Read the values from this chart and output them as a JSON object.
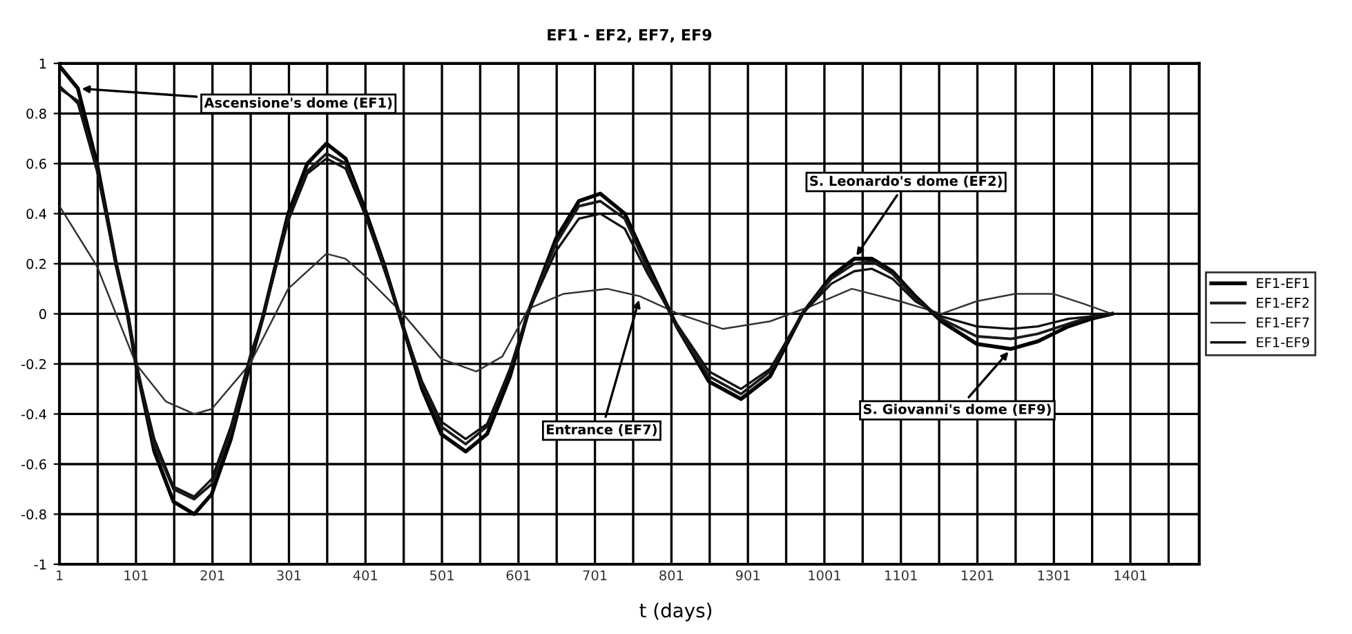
{
  "chart_data": {
    "type": "line",
    "title": "EF1 - EF2, EF7, EF9",
    "xlabel": "t (days)",
    "xlim": [
      1,
      1491
    ],
    "ylim": [
      -1,
      1
    ],
    "xticks": [
      1,
      {
        "value": 51,
        "label": null
      },
      101,
      {
        "value": 151,
        "label": null
      },
      201,
      {
        "value": 251,
        "label": null
      },
      301,
      {
        "value": 351,
        "label": null
      },
      401,
      {
        "value": 451,
        "label": null
      },
      501,
      {
        "value": 551,
        "label": null
      },
      601,
      {
        "value": 651,
        "label": null
      },
      701,
      {
        "value": 751,
        "label": null
      },
      801,
      {
        "value": 851,
        "label": null
      },
      901,
      {
        "value": 951,
        "label": null
      },
      1001,
      {
        "value": 1051,
        "label": null
      },
      1101,
      {
        "value": 1151,
        "label": null
      },
      1201,
      {
        "value": 1251,
        "label": null
      },
      1301,
      {
        "value": 1351,
        "label": null
      },
      1401,
      {
        "value": 1451,
        "label": null
      }
    ],
    "yticks": [
      -1,
      -0.8,
      -0.6,
      -0.4,
      -0.2,
      0,
      0.2,
      0.4,
      0.6,
      0.8,
      1
    ],
    "grid": true,
    "legend": "right",
    "marker": "none",
    "line_style": "solid",
    "series": [
      {
        "name": "EF1-EF1",
        "color": "#000000",
        "x": [
          1,
          25,
          50,
          75,
          90,
          101,
          125,
          150,
          177,
          200,
          225,
          250,
          268,
          300,
          325,
          350,
          375,
          400,
          425,
          445,
          475,
          500,
          532,
          560,
          590,
          613,
          650,
          680,
          708,
          740,
          770,
          808,
          850,
          892,
          930,
          972,
          1010,
          1040,
          1063,
          1090,
          1120,
          1154,
          1200,
          1245,
          1280,
          1320,
          1350,
          1377
        ],
        "values": [
          0.99,
          0.9,
          0.6,
          0.2,
          0,
          -0.2,
          -0.55,
          -0.75,
          -0.8,
          -0.72,
          -0.5,
          -0.2,
          0,
          0.4,
          0.6,
          0.68,
          0.62,
          0.42,
          0.2,
          0,
          -0.3,
          -0.48,
          -0.55,
          -0.48,
          -0.25,
          0,
          0.3,
          0.45,
          0.48,
          0.4,
          0.2,
          -0.05,
          -0.27,
          -0.34,
          -0.25,
          0,
          0.15,
          0.22,
          0.22,
          0.17,
          0.07,
          -0.03,
          -0.12,
          -0.14,
          -0.11,
          -0.05,
          -0.02,
          0
        ]
      },
      {
        "name": "EF1-EF2",
        "color": "#1a1a1a",
        "x": [
          1,
          25,
          50,
          75,
          90,
          101,
          125,
          150,
          177,
          200,
          225,
          250,
          268,
          300,
          325,
          350,
          375,
          400,
          425,
          445,
          475,
          500,
          532,
          560,
          590,
          613,
          650,
          680,
          708,
          740,
          770,
          808,
          850,
          892,
          930,
          972,
          1010,
          1040,
          1063,
          1090,
          1120,
          1154,
          1200,
          1245,
          1280,
          1320,
          1350,
          1377
        ],
        "values": [
          0.9,
          0.85,
          0.58,
          0.2,
          0,
          -0.2,
          -0.52,
          -0.7,
          -0.74,
          -0.68,
          -0.47,
          -0.18,
          0,
          0.38,
          0.57,
          0.64,
          0.6,
          0.4,
          0.19,
          0,
          -0.28,
          -0.45,
          -0.52,
          -0.45,
          -0.22,
          0,
          0.28,
          0.43,
          0.45,
          0.38,
          0.18,
          -0.05,
          -0.25,
          -0.32,
          -0.23,
          0,
          0.14,
          0.2,
          0.21,
          0.16,
          0.06,
          -0.02,
          -0.09,
          -0.1,
          -0.08,
          -0.04,
          -0.01,
          0
        ]
      },
      {
        "name": "EF1-EF7",
        "color": "#333333",
        "x": [
          1,
          50,
          101,
          140,
          177,
          200,
          250,
          300,
          350,
          375,
          401,
          450,
          500,
          546,
          580,
          614,
          660,
          717,
          760,
          810,
          868,
          930,
          983,
          1037,
          1100,
          1154,
          1200,
          1250,
          1300,
          1340,
          1377
        ],
        "values": [
          0.43,
          0.19,
          -0.2,
          -0.35,
          -0.4,
          -0.38,
          -0.2,
          0.1,
          0.24,
          0.22,
          0.15,
          0,
          -0.18,
          -0.23,
          -0.17,
          0.02,
          0.08,
          0.1,
          0.07,
          0,
          -0.06,
          -0.03,
          0.03,
          0.1,
          0.05,
          0,
          0.05,
          0.08,
          0.08,
          0.04,
          0
        ]
      },
      {
        "name": "EF1-EF9",
        "color": "#111111",
        "x": [
          1,
          25,
          50,
          75,
          90,
          101,
          125,
          150,
          177,
          200,
          225,
          250,
          268,
          300,
          325,
          350,
          375,
          400,
          425,
          445,
          475,
          500,
          532,
          560,
          590,
          613,
          650,
          680,
          708,
          740,
          770,
          808,
          850,
          892,
          930,
          972,
          1010,
          1040,
          1063,
          1090,
          1120,
          1154,
          1200,
          1245,
          1280,
          1320,
          1350,
          1377
        ],
        "values": [
          0.91,
          0.84,
          0.57,
          0.19,
          0,
          -0.2,
          -0.5,
          -0.69,
          -0.73,
          -0.66,
          -0.45,
          -0.17,
          0,
          0.37,
          0.56,
          0.62,
          0.58,
          0.4,
          0.18,
          0,
          -0.27,
          -0.43,
          -0.5,
          -0.44,
          -0.22,
          0,
          0.25,
          0.38,
          0.4,
          0.34,
          0.16,
          -0.04,
          -0.23,
          -0.3,
          -0.22,
          0,
          0.12,
          0.17,
          0.18,
          0.14,
          0.05,
          -0.01,
          -0.05,
          -0.06,
          -0.05,
          -0.02,
          -0.01,
          0
        ]
      }
    ],
    "annotations": [
      {
        "text": "Ascensione's dome (EF1)",
        "x": 25,
        "y": 0.9
      },
      {
        "text": "S. Leonardo's dome (EF2)",
        "x": 1040,
        "y": 0.22
      },
      {
        "text": "Entrance (EF7)",
        "x": 760,
        "y": 0.07
      },
      {
        "text": "S. Giovanni's dome (EF9)",
        "x": 1245,
        "y": -0.14
      }
    ]
  }
}
